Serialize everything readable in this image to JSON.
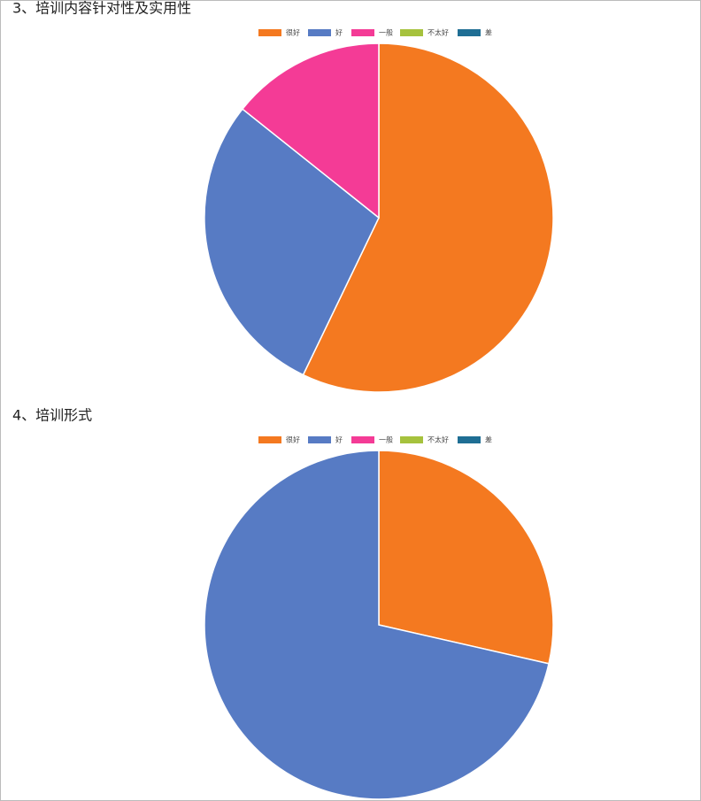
{
  "chart_data": [
    {
      "type": "pie",
      "title": "3、培训内容针对性及实用性",
      "categories": [
        "很好",
        "好",
        "一般",
        "不太好",
        "差"
      ],
      "values": [
        4,
        2,
        1,
        0,
        0
      ],
      "colors": [
        "#f47920",
        "#577bc4",
        "#f43b96",
        "#a6c23d",
        "#1f6e94"
      ]
    },
    {
      "type": "pie",
      "title": "4、培训形式",
      "categories": [
        "很好",
        "好",
        "一般",
        "不太好",
        "差"
      ],
      "values": [
        2,
        5,
        0,
        0,
        0
      ],
      "colors": [
        "#f47920",
        "#577bc4",
        "#f43b96",
        "#a6c23d",
        "#1f6e94"
      ]
    }
  ]
}
